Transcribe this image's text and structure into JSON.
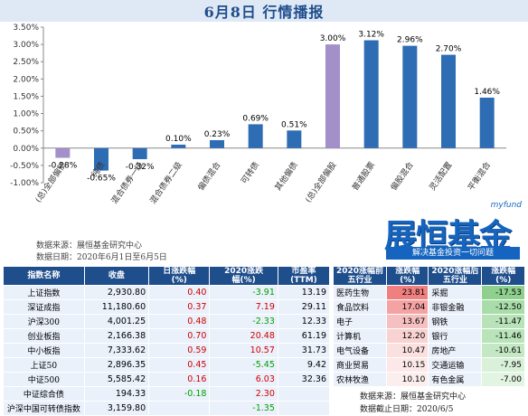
{
  "title": "6月8日  行情播报",
  "chart_data": {
    "type": "bar",
    "categories": [
      "(总)全部偏债",
      "纯债",
      "混合债券一级",
      "混合债券二级",
      "偏债混合",
      "可转债",
      "其他偏债",
      "(总)全部偏股",
      "普通股票",
      "偏股混合",
      "灵活配置",
      "平衡混合"
    ],
    "values": [
      -0.28,
      -0.65,
      -0.32,
      0.1,
      0.23,
      0.69,
      0.51,
      3.0,
      3.12,
      2.96,
      2.7,
      1.46
    ],
    "value_labels": [
      "-0.28%",
      "-0.65%",
      "-0.32%",
      "0.10%",
      "0.23%",
      "0.69%",
      "0.51%",
      "3.00%",
      "3.12%",
      "2.96%",
      "2.70%",
      "1.46%"
    ],
    "highlight_colors": [
      "#a390c9",
      "#2e6db4",
      "#2e6db4",
      "#2e6db4",
      "#2e6db4",
      "#2e6db4",
      "#2e6db4",
      "#a390c9",
      "#2e6db4",
      "#2e6db4",
      "#2e6db4",
      "#2e6db4"
    ],
    "ylim": [
      -1.0,
      3.5
    ],
    "yticks": [
      "-1.00%",
      "-0.50%",
      "0.00%",
      "0.50%",
      "1.00%",
      "1.50%",
      "2.00%",
      "2.50%",
      "3.00%",
      "3.50%"
    ],
    "ytick_values": [
      -1.0,
      -0.5,
      0,
      0.5,
      1.0,
      1.5,
      2.0,
      2.5,
      3.0,
      3.5
    ],
    "grid": false,
    "legend": "none"
  },
  "notes": {
    "source": "数据来源：展恒基金研究中心",
    "date": "数据日期：2020年6月1日至6月5日"
  },
  "logo": {
    "big": "展恒基金",
    "myfund": "myfund",
    "sub": "解决基金投资一切问题"
  },
  "left_table": {
    "headers": [
      "指数名称",
      "收盘",
      "日涨跌幅\n(%)",
      "2020涨跌\n幅(%)",
      "市盈率\n(TTM)"
    ],
    "rows": [
      {
        "name": "上证指数",
        "close": "2,930.80",
        "day": "0.40",
        "ytd": "-3.91",
        "pe": "13.19"
      },
      {
        "name": "深证成指",
        "close": "11,180.60",
        "day": "0.37",
        "ytd": "7.19",
        "pe": "29.11"
      },
      {
        "name": "沪深300",
        "close": "4,001.25",
        "day": "0.48",
        "ytd": "-2.33",
        "pe": "12.33"
      },
      {
        "name": "创业板指",
        "close": "2,166.38",
        "day": "0.70",
        "ytd": "20.48",
        "pe": "61.19"
      },
      {
        "name": "中小板指",
        "close": "7,333.62",
        "day": "0.59",
        "ytd": "10.57",
        "pe": "31.73"
      },
      {
        "name": "上证50",
        "close": "2,896.35",
        "day": "0.45",
        "ytd": "-5.45",
        "pe": "9.42"
      },
      {
        "name": "中证500",
        "close": "5,585.42",
        "day": "0.16",
        "ytd": "6.03",
        "pe": "32.36"
      },
      {
        "name": "中证综合债",
        "close": "194.33",
        "day": "-0.18",
        "ytd": "2.30",
        "pe": ""
      },
      {
        "name": "沪深中国可转债指数",
        "close": "3,159.80",
        "day": "",
        "ytd": "-1.35",
        "pe": ""
      }
    ]
  },
  "right_table": {
    "headers": [
      "2020涨幅前\n五行业",
      "涨跌幅\n(%)",
      "2020涨幅后\n五行业",
      "涨跌幅\n(%)"
    ],
    "rows": [
      {
        "top": "医药生物",
        "top_val": "23.81",
        "bottom": "采掘",
        "bottom_val": "-17.53"
      },
      {
        "top": "食品饮料",
        "top_val": "17.04",
        "bottom": "非银金融",
        "bottom_val": "-12.50"
      },
      {
        "top": "电子",
        "top_val": "13.67",
        "bottom": "钢铁",
        "bottom_val": "-11.47"
      },
      {
        "top": "计算机",
        "top_val": "12.20",
        "bottom": "银行",
        "bottom_val": "-11.46"
      },
      {
        "top": "电气设备",
        "top_val": "10.47",
        "bottom": "房地产",
        "bottom_val": "-10.61"
      },
      {
        "top": "商业贸易",
        "top_val": "10.15",
        "bottom": "交通运输",
        "bottom_val": "-7.95"
      },
      {
        "top": "农林牧渔",
        "top_val": "10.10",
        "bottom": "有色金属",
        "bottom_val": "-7.00"
      }
    ],
    "source": "数据来源：展恒基金研究中心",
    "date": "数据截止日期：2020/6/5"
  }
}
